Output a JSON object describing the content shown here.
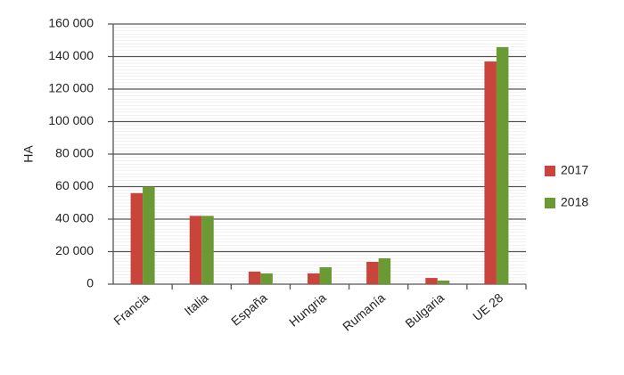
{
  "chart_data": {
    "type": "bar",
    "ylabel": "HA",
    "categories": [
      "Francia",
      "Italia",
      "España",
      "Hungria",
      "Rumanía",
      "Bulgaria",
      "UE 28"
    ],
    "series": [
      {
        "name": "2017",
        "color": "#c9443a",
        "values": [
          56000,
          42000,
          7700,
          6600,
          13700,
          3800,
          137000
        ]
      },
      {
        "name": "2018",
        "color": "#6b9a35",
        "values": [
          60000,
          42000,
          6600,
          10400,
          15900,
          2200,
          145800
        ]
      }
    ],
    "ylim": [
      0,
      160000
    ],
    "yticks": [
      0,
      {
        "value": 20000,
        "label": "20 000"
      },
      {
        "value": 40000,
        "label": "40 000"
      },
      {
        "value": 60000,
        "label": "60 000"
      },
      {
        "value": 80000,
        "label": "80 000"
      },
      {
        "value": 100000,
        "label": "100 000"
      },
      {
        "value": 120000,
        "label": "120 000"
      },
      {
        "value": 140000,
        "label": "140 000"
      },
      {
        "value": 160000,
        "label": "160 000"
      }
    ],
    "grid": true,
    "legend": "right"
  }
}
